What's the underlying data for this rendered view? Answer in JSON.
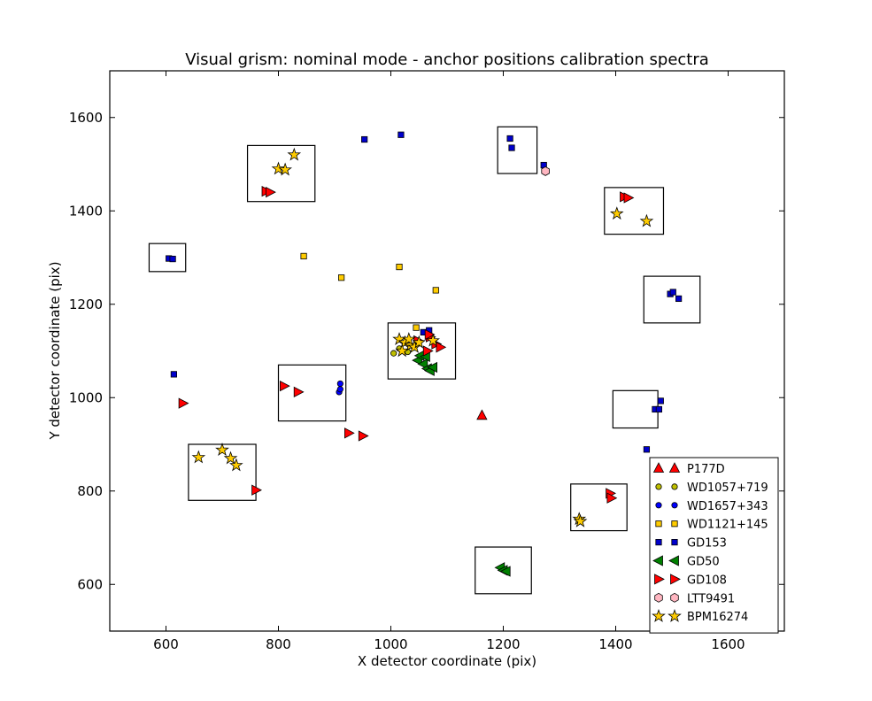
{
  "chart_data": {
    "type": "scatter",
    "title": "Visual grism: nominal mode - anchor positions calibration spectra",
    "xlabel": "X detector coordinate (pix)",
    "ylabel": "Y detector coordinate (pix)",
    "xlim": [
      500,
      1700
    ],
    "ylim": [
      500,
      1700
    ],
    "xticks": [
      600,
      800,
      1000,
      1200,
      1400,
      1600
    ],
    "yticks": [
      600,
      800,
      1000,
      1200,
      1400,
      1600
    ],
    "grid": false,
    "legend_position": "bottom-right",
    "boxes": [
      {
        "x0": 745,
        "x1": 865,
        "y0": 1420,
        "y1": 1540
      },
      {
        "x0": 570,
        "x1": 635,
        "y0": 1270,
        "y1": 1330
      },
      {
        "x0": 1190,
        "x1": 1260,
        "y0": 1480,
        "y1": 1580
      },
      {
        "x0": 1380,
        "x1": 1485,
        "y0": 1350,
        "y1": 1450
      },
      {
        "x0": 1450,
        "x1": 1550,
        "y0": 1160,
        "y1": 1260
      },
      {
        "x0": 995,
        "x1": 1115,
        "y0": 1040,
        "y1": 1160
      },
      {
        "x0": 800,
        "x1": 920,
        "y0": 950,
        "y1": 1070
      },
      {
        "x0": 1395,
        "x1": 1475,
        "y0": 935,
        "y1": 1015
      },
      {
        "x0": 640,
        "x1": 760,
        "y0": 780,
        "y1": 900
      },
      {
        "x0": 1320,
        "x1": 1420,
        "y0": 715,
        "y1": 815
      },
      {
        "x0": 1150,
        "x1": 1250,
        "y0": 580,
        "y1": 680
      }
    ],
    "series": [
      {
        "name": "P177D",
        "marker": "triangle-up",
        "color": "#ff0000",
        "points": [
          [
            1162,
            962
          ]
        ]
      },
      {
        "name": "WD1057+719",
        "marker": "circle",
        "color": "#bfbf00",
        "points": [
          [
            1005,
            1095
          ],
          [
            1015,
            1105
          ],
          [
            1030,
            1098
          ]
        ]
      },
      {
        "name": "WD1657+343",
        "marker": "circle",
        "color": "#0000ff",
        "points": [
          [
            908,
            1012
          ],
          [
            910,
            1030
          ],
          [
            910,
            1018
          ]
        ]
      },
      {
        "name": "WD1121+145",
        "marker": "square",
        "color": "#ffcc00",
        "points": [
          [
            845,
            1303
          ],
          [
            912,
            1257
          ],
          [
            1015,
            1280
          ],
          [
            1080,
            1230
          ],
          [
            1045,
            1150
          ]
        ]
      },
      {
        "name": "GD153",
        "marker": "square",
        "color": "#0000cc",
        "points": [
          [
            953,
            1553
          ],
          [
            1018,
            1563
          ],
          [
            1212,
            1555
          ],
          [
            1215,
            1535
          ],
          [
            1272,
            1498
          ],
          [
            605,
            1298
          ],
          [
            612,
            1297
          ],
          [
            614,
            1050
          ],
          [
            1497,
            1222
          ],
          [
            1502,
            1226
          ],
          [
            1512,
            1212
          ],
          [
            1470,
            975
          ],
          [
            1477,
            975
          ],
          [
            1480,
            993
          ],
          [
            1455,
            889
          ],
          [
            1058,
            1140
          ],
          [
            1068,
            1144
          ]
        ]
      },
      {
        "name": "GD50",
        "marker": "triangle-left",
        "color": "#008000",
        "points": [
          [
            1048,
            1080
          ],
          [
            1058,
            1072
          ],
          [
            1065,
            1062
          ],
          [
            1070,
            1058
          ],
          [
            1075,
            1065
          ],
          [
            1052,
            1090
          ],
          [
            1062,
            1088
          ],
          [
            1195,
            636
          ],
          [
            1200,
            630
          ],
          [
            1205,
            628
          ]
        ]
      },
      {
        "name": "GD108",
        "marker": "triangle-right",
        "color": "#ff0000",
        "points": [
          [
            778,
            1442
          ],
          [
            785,
            1440
          ],
          [
            1415,
            1430
          ],
          [
            1422,
            1428
          ],
          [
            810,
            1025
          ],
          [
            835,
            1012
          ],
          [
            925,
            924
          ],
          [
            950,
            918
          ],
          [
            630,
            988
          ],
          [
            760,
            802
          ],
          [
            1390,
            795
          ],
          [
            1392,
            785
          ],
          [
            1048,
            1122
          ],
          [
            1065,
            1100
          ],
          [
            1070,
            1130
          ],
          [
            1080,
            1115
          ],
          [
            1088,
            1108
          ],
          [
            1068,
            1135
          ]
        ]
      },
      {
        "name": "LTT9491",
        "marker": "hexagon",
        "color": "#ffb6c1",
        "points": [
          [
            1275,
            1485
          ]
        ]
      },
      {
        "name": "BPM16274",
        "marker": "star",
        "color": "#ffcc00",
        "points": [
          [
            800,
            1490
          ],
          [
            812,
            1488
          ],
          [
            828,
            1520
          ],
          [
            1402,
            1394
          ],
          [
            1455,
            1378
          ],
          [
            658,
            872
          ],
          [
            700,
            888
          ],
          [
            715,
            870
          ],
          [
            725,
            855
          ],
          [
            1335,
            740
          ],
          [
            1337,
            735
          ],
          [
            1015,
            1125
          ],
          [
            1025,
            1118
          ],
          [
            1035,
            1112
          ],
          [
            1042,
            1108
          ],
          [
            1050,
            1118
          ],
          [
            1075,
            1122
          ],
          [
            1020,
            1100
          ],
          [
            1032,
            1125
          ]
        ]
      }
    ]
  }
}
